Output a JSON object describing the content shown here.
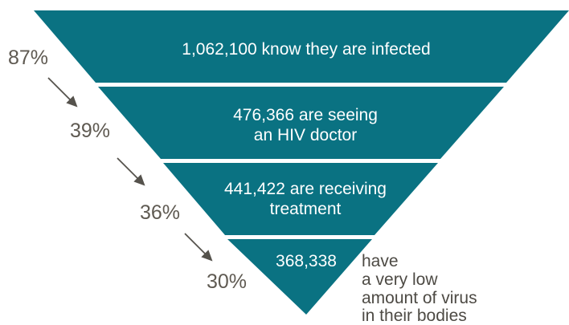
{
  "colors": {
    "funnel": "#0a7282",
    "arrow": "#55524c",
    "percent_text": "#5f5a52",
    "note_text": "#4d4a44"
  },
  "levels": [
    {
      "count_text": "1,062,100 know they are infected",
      "lines": [
        "1,062,100 know they are infected"
      ]
    },
    {
      "count_text": "476,366 are seeing an HIV doctor",
      "lines": [
        "476,366 are seeing",
        "an HIV doctor"
      ]
    },
    {
      "count_text": "441,422 are receiving treatment",
      "lines": [
        "441,422 are receiving",
        "treatment"
      ]
    },
    {
      "count_text": "368,338",
      "lines": [
        "368,338"
      ]
    }
  ],
  "percentages": [
    "87%",
    "39%",
    "36%",
    "30%"
  ],
  "side_note": [
    "have",
    "a very low",
    "amount of virus",
    "in their bodies"
  ]
}
